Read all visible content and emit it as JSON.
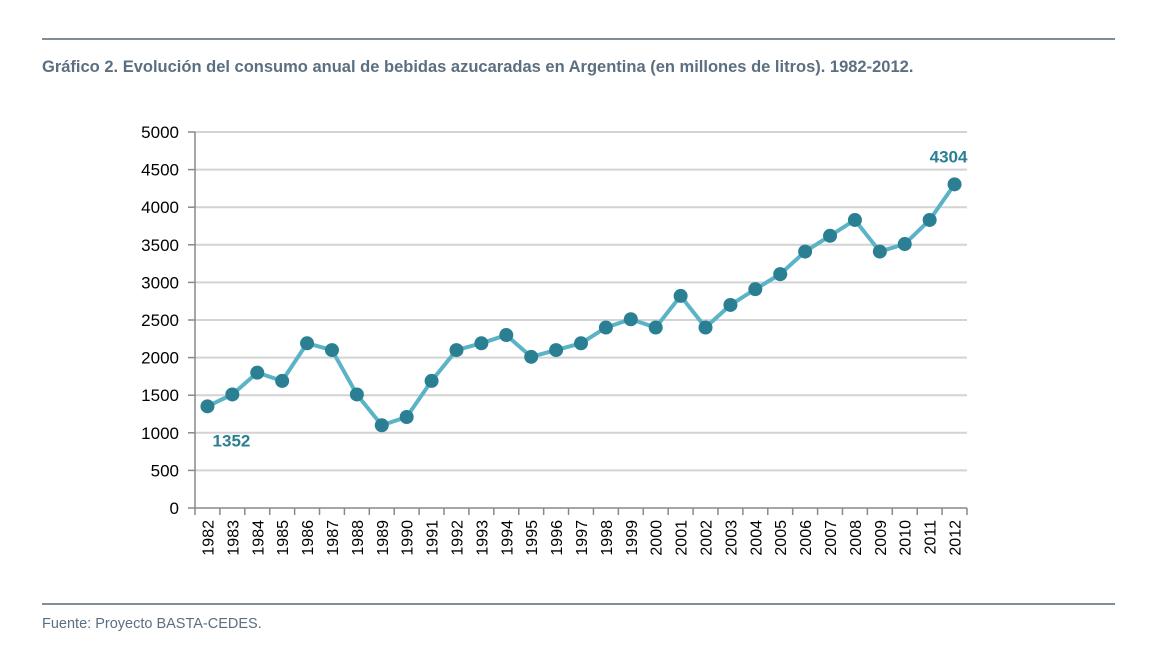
{
  "figure": {
    "title": "Gráfico 2.  Evolución del consumo anual de bebidas azucaradas en Argentina (en millones de litros). 1982-2012.",
    "source": "Fuente: Proyecto BASTA-CEDES."
  },
  "colors": {
    "line": "#5ab3c6",
    "marker": "#2b7f93",
    "label": "#2b7f93",
    "grid": "#d3d3d3",
    "rule": "#7f8e99",
    "text": "#5b6f80"
  },
  "chart_data": {
    "type": "line",
    "title": "Gráfico 2.  Evolución del consumo anual de bebidas azucaradas en Argentina (en millones de litros). 1982-2012.",
    "xlabel": "",
    "ylabel": "",
    "ylim": [
      0,
      5000
    ],
    "yticks": [
      0,
      500,
      1000,
      1500,
      2000,
      2500,
      3000,
      3500,
      4000,
      4500,
      5000
    ],
    "grid": true,
    "legend": "none",
    "categories": [
      "1982",
      "1983",
      "1984",
      "1985",
      "1986",
      "1987",
      "1988",
      "1989",
      "1990",
      "1991",
      "1992",
      "1993",
      "1994",
      "1995",
      "1996",
      "1997",
      "1998",
      "1999",
      "2000",
      "2001",
      "2002",
      "2003",
      "2004",
      "2005",
      "2006",
      "2007",
      "2008",
      "2009",
      "2010",
      "2011",
      "2012"
    ],
    "series": [
      {
        "values": [
          1352,
          1510,
          1800,
          1690,
          2190,
          2100,
          1510,
          1100,
          1210,
          1690,
          2100,
          2190,
          2300,
          2010,
          2100,
          2190,
          2400,
          2510,
          2400,
          2820,
          2400,
          2700,
          2910,
          3110,
          3410,
          3620,
          3830,
          3410,
          3510,
          3830,
          4304
        ]
      }
    ],
    "annotations": [
      {
        "text": "1352",
        "category": "1982",
        "position": "below"
      },
      {
        "text": "4304",
        "category": "2012",
        "position": "above"
      }
    ]
  }
}
